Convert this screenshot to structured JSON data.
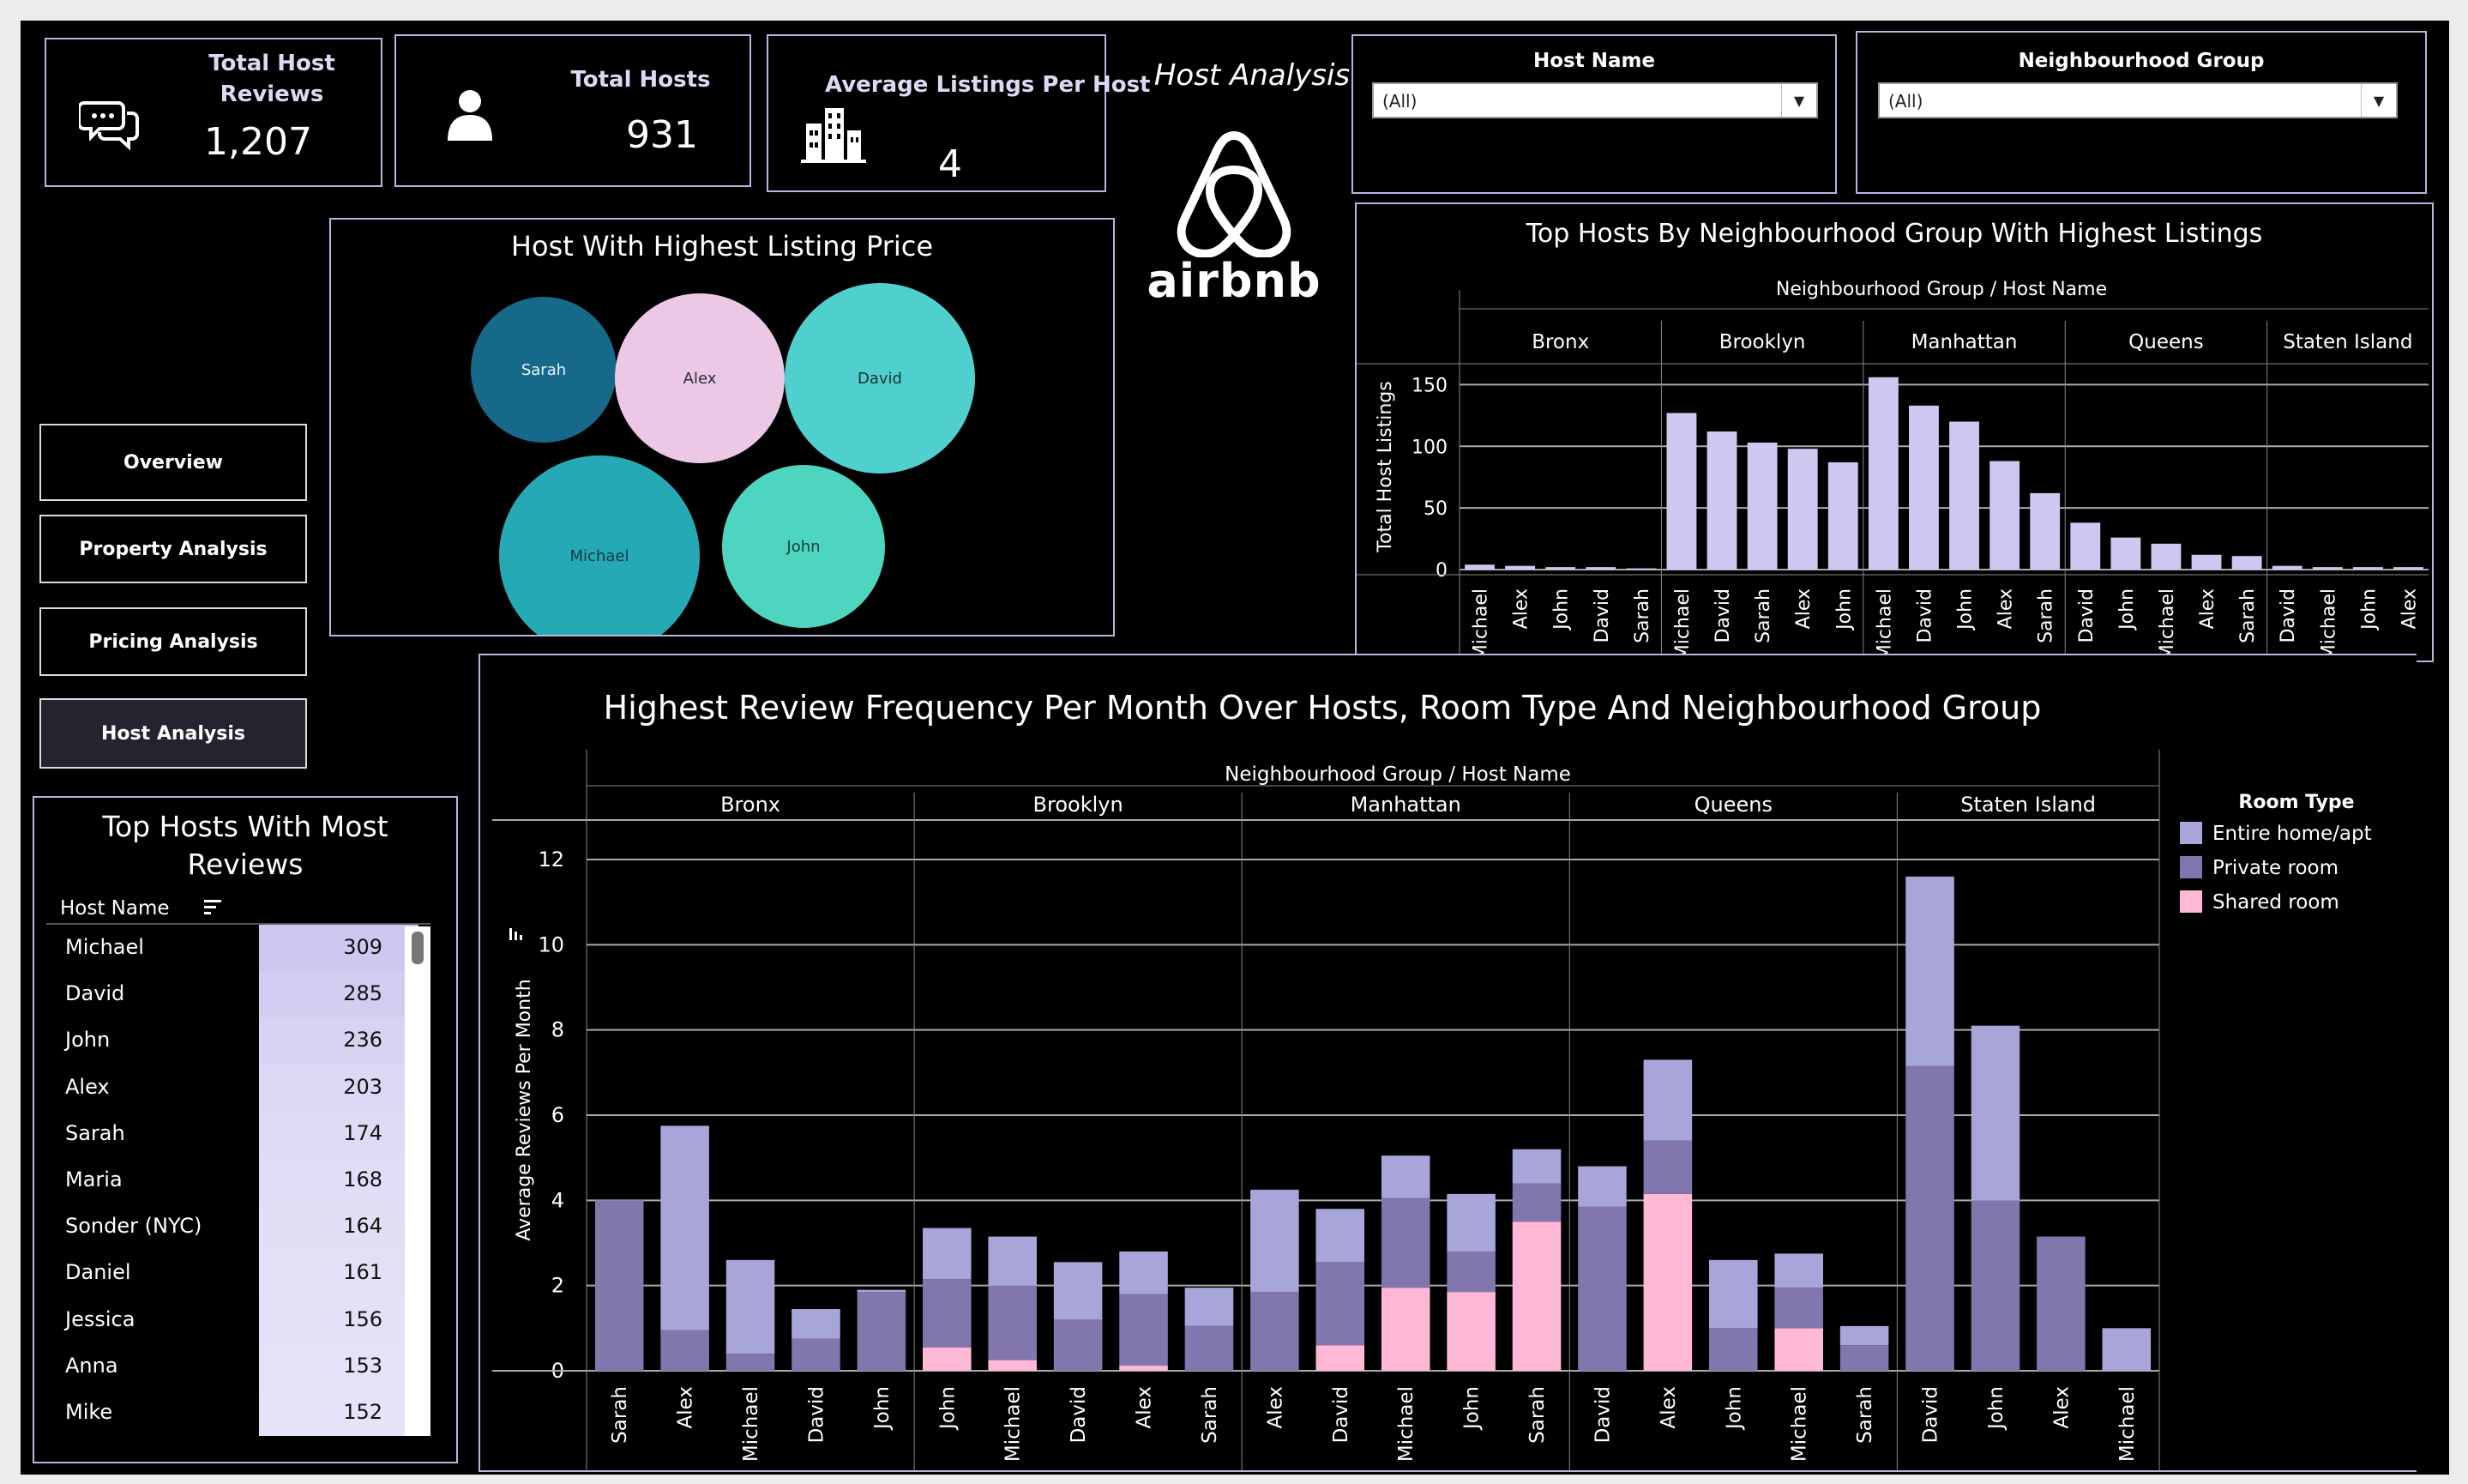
{
  "kpis": {
    "total_host_reviews_label": "Total Host Reviews",
    "total_host_reviews_value": "1,207",
    "total_hosts_label": "Total Hosts",
    "total_hosts_value": "931",
    "avg_listings_label": "Average Listings Per Host",
    "avg_listings_value": "4"
  },
  "header": {
    "page_title": "Host Analysis",
    "logo_text": "airbnb"
  },
  "filters": {
    "host_name_label": "Host Name",
    "host_name_value": "(All)",
    "neighbourhood_label": "Neighbourhood Group",
    "neighbourhood_value": "(All)"
  },
  "nav": {
    "overview": "Overview",
    "property": "Property Analysis",
    "pricing": "Pricing Analysis",
    "host": "Host Analysis"
  },
  "bubble": {
    "title": "Host With Highest Listing Price",
    "hosts": [
      {
        "name": "Sarah",
        "color": "#17698a"
      },
      {
        "name": "Alex",
        "color": "#ecc8e6"
      },
      {
        "name": "David",
        "color": "#4fd0ce"
      },
      {
        "name": "Michael",
        "color": "#25aab5"
      },
      {
        "name": "John",
        "color": "#4ed5c0"
      }
    ]
  },
  "reviews_table": {
    "title_line1": "Top Hosts With Most",
    "title_line2": "Reviews",
    "column_header": "Host Name",
    "rows": [
      {
        "name": "Michael",
        "value": "309"
      },
      {
        "name": "David",
        "value": "285"
      },
      {
        "name": "John",
        "value": "236"
      },
      {
        "name": "Alex",
        "value": "203"
      },
      {
        "name": "Sarah",
        "value": "174"
      },
      {
        "name": "Maria",
        "value": "168"
      },
      {
        "name": "Sonder (NYC)",
        "value": "164"
      },
      {
        "name": "Daniel",
        "value": "161"
      },
      {
        "name": "Jessica",
        "value": "156"
      },
      {
        "name": "Anna",
        "value": "153"
      },
      {
        "name": "Mike",
        "value": "152"
      }
    ]
  },
  "colors": {
    "entire": "#a8a5da",
    "private": "#8176ae",
    "shared": "#ffb8d6",
    "listing_bar": "#cdc8f0",
    "panel_border": "#b9b6de"
  },
  "chart_data": [
    {
      "type": "bar",
      "title": "Top Hosts By Neighbourhood Group With Highest Listings",
      "header": "Neighbourhood Group / Host Name",
      "ylabel": "Total Host Listings",
      "ylim": [
        0,
        160
      ],
      "yticks": [
        0,
        50,
        100,
        150
      ],
      "grid": true,
      "groups": [
        {
          "name": "Bronx",
          "hosts": [
            "Michael",
            "Alex",
            "John",
            "David",
            "Sarah"
          ],
          "values": [
            4,
            3,
            2,
            2,
            1
          ]
        },
        {
          "name": "Brooklyn",
          "hosts": [
            "Michael",
            "David",
            "Sarah",
            "Alex",
            "John"
          ],
          "values": [
            127,
            112,
            103,
            98,
            87
          ]
        },
        {
          "name": "Manhattan",
          "hosts": [
            "Michael",
            "David",
            "John",
            "Alex",
            "Sarah"
          ],
          "values": [
            156,
            133,
            120,
            88,
            62
          ]
        },
        {
          "name": "Queens",
          "hosts": [
            "David",
            "John",
            "Michael",
            "Alex",
            "Sarah"
          ],
          "values": [
            38,
            26,
            21,
            12,
            11
          ]
        },
        {
          "name": "Staten Island",
          "hosts": [
            "David",
            "Michael",
            "John",
            "Alex"
          ],
          "values": [
            3,
            2,
            2,
            2
          ]
        }
      ]
    },
    {
      "type": "bar",
      "stacked": true,
      "title": "Highest Review Frequency Per Month Over Hosts, Room Type And Neighbourhood Group",
      "header": "Neighbourhood Group / Host Name",
      "ylabel": "Average Reviews Per Month",
      "ylim": [
        0,
        12
      ],
      "yticks": [
        0,
        2,
        4,
        6,
        8,
        10,
        12
      ],
      "grid": true,
      "legend": {
        "title": "Room Type",
        "items": [
          "Entire home/apt",
          "Private room",
          "Shared room"
        ],
        "placement": "right"
      },
      "series_names": [
        "Shared room",
        "Private room",
        "Entire home/apt"
      ],
      "groups": [
        {
          "name": "Bronx",
          "bars": [
            {
              "host": "Sarah",
              "shared": 0,
              "private": 4.0,
              "entire": 0
            },
            {
              "host": "Alex",
              "shared": 0,
              "private": 0.95,
              "entire": 4.8
            },
            {
              "host": "Michael",
              "shared": 0,
              "private": 0.4,
              "entire": 2.2
            },
            {
              "host": "David",
              "shared": 0,
              "private": 0.75,
              "entire": 0.7
            },
            {
              "host": "John",
              "shared": 0,
              "private": 1.85,
              "entire": 0.05
            }
          ]
        },
        {
          "name": "Brooklyn",
          "bars": [
            {
              "host": "John",
              "shared": 0.55,
              "private": 1.6,
              "entire": 1.2
            },
            {
              "host": "Michael",
              "shared": 0.25,
              "private": 1.75,
              "entire": 1.15
            },
            {
              "host": "David",
              "shared": 0,
              "private": 1.2,
              "entire": 1.35
            },
            {
              "host": "Alex",
              "shared": 0.12,
              "private": 1.68,
              "entire": 1.0
            },
            {
              "host": "Sarah",
              "shared": 0,
              "private": 1.05,
              "entire": 0.9
            }
          ]
        },
        {
          "name": "Manhattan",
          "bars": [
            {
              "host": "Alex",
              "shared": 0,
              "private": 1.85,
              "entire": 2.4
            },
            {
              "host": "David",
              "shared": 0.6,
              "private": 1.95,
              "entire": 1.25
            },
            {
              "host": "Michael",
              "shared": 1.95,
              "private": 2.1,
              "entire": 1.0
            },
            {
              "host": "John",
              "shared": 1.85,
              "private": 0.95,
              "entire": 1.35
            },
            {
              "host": "Sarah",
              "shared": 3.5,
              "private": 0.9,
              "entire": 0.8
            }
          ]
        },
        {
          "name": "Queens",
          "bars": [
            {
              "host": "David",
              "shared": 0,
              "private": 3.85,
              "entire": 0.95
            },
            {
              "host": "Alex",
              "shared": 4.15,
              "private": 1.25,
              "entire": 1.9
            },
            {
              "host": "John",
              "shared": 0,
              "private": 1.0,
              "entire": 1.6
            },
            {
              "host": "Michael",
              "shared": 1.0,
              "private": 0.95,
              "entire": 0.8
            },
            {
              "host": "Sarah",
              "shared": 0,
              "private": 0.6,
              "entire": 0.45
            }
          ]
        },
        {
          "name": "Staten Island",
          "bars": [
            {
              "host": "David",
              "shared": 0,
              "private": 7.15,
              "entire": 4.45
            },
            {
              "host": "John",
              "shared": 0,
              "private": 4.0,
              "entire": 4.1
            },
            {
              "host": "Alex",
              "shared": 0,
              "private": 3.15,
              "entire": 0
            },
            {
              "host": "Michael",
              "shared": 0,
              "private": 0,
              "entire": 1.0
            }
          ]
        }
      ]
    }
  ]
}
